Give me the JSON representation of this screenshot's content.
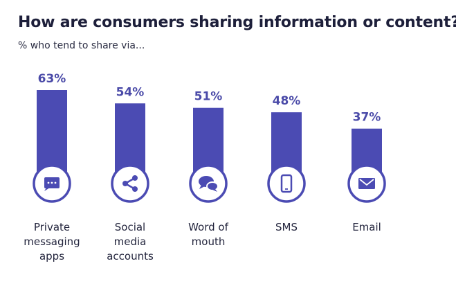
{
  "header": {
    "title": "How are consumers sharing information or content?",
    "subtitle": "% who tend to share via..."
  },
  "colors": {
    "bar": "#4b4bb3",
    "circle_border": "#4b4bb3",
    "circle_fill": "#ffffff",
    "label": "#4a4aa8"
  },
  "chart_data": {
    "type": "bar",
    "title": "How are consumers sharing information or content?",
    "subtitle": "% who tend to share via...",
    "xlabel": "",
    "ylabel": "",
    "ylim": [
      0,
      63
    ],
    "grid": false,
    "categories": [
      "Private messaging apps",
      "Social media accounts",
      "Word of mouth",
      "SMS",
      "Email"
    ],
    "category_lines": [
      [
        "Private",
        "messaging",
        "apps"
      ],
      [
        "Social",
        "media",
        "accounts"
      ],
      [
        "Word of",
        "mouth"
      ],
      [
        "SMS"
      ],
      [
        "Email"
      ]
    ],
    "values": [
      63,
      54,
      51,
      48,
      37
    ],
    "value_labels": [
      "63%",
      "54%",
      "51%",
      "48%",
      "37%"
    ],
    "icons": [
      "chat-bubble-icon",
      "share-icon",
      "speech-bubbles-icon",
      "mobile-phone-icon",
      "envelope-icon"
    ]
  }
}
